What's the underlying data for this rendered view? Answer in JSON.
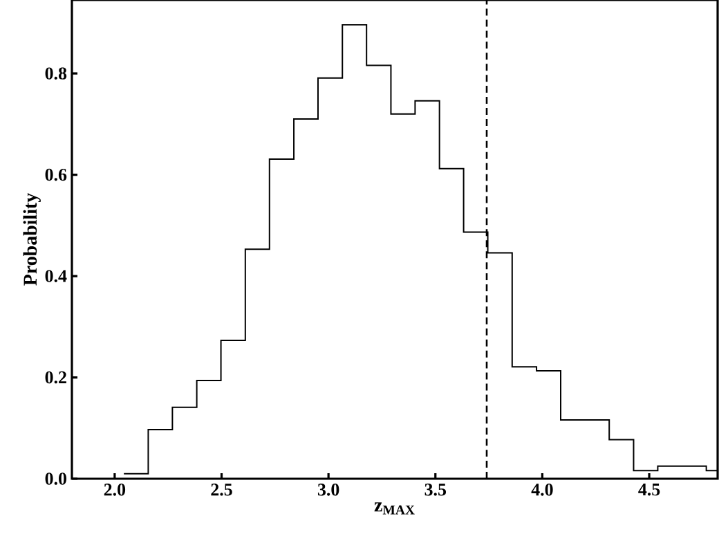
{
  "chart_data": {
    "type": "histogram",
    "xlabel": "z$_{MAX}$",
    "ylabel": "Probability",
    "bins": [
      2.043,
      2.157,
      2.27,
      2.384,
      2.497,
      2.611,
      2.724,
      2.838,
      2.951,
      3.065,
      3.178,
      3.292,
      3.405,
      3.519,
      3.632,
      3.745,
      3.859,
      3.973,
      4.086,
      4.2,
      4.313,
      4.427,
      4.54,
      4.654,
      4.767,
      4.82
    ],
    "values": [
      0.01,
      0.097,
      0.141,
      0.194,
      0.273,
      0.453,
      0.631,
      0.71,
      0.791,
      0.896,
      0.816,
      0.72,
      0.746,
      0.612,
      0.487,
      0.446,
      0.221,
      0.213,
      0.116,
      0.116,
      0.077,
      0.016,
      0.025,
      0.025,
      0.016
    ],
    "color": "#000000",
    "xlim": [
      1.8,
      4.82
    ],
    "ylim": [
      0,
      0.945
    ],
    "xticks": [
      {
        "value": 2,
        "label": "2.0"
      },
      2.5,
      {
        "value": 3,
        "label": "3.0"
      },
      3.5,
      {
        "value": 4,
        "label": "4.0"
      },
      4.5
    ],
    "yticks": [
      {
        "value": 0,
        "label": "0.0"
      },
      0.2,
      0.4,
      0.6,
      0.8
    ],
    "ref_lines": [
      {
        "axis": "x",
        "value": 3.74,
        "line_style": "dashed",
        "color": "#000000"
      }
    ]
  }
}
